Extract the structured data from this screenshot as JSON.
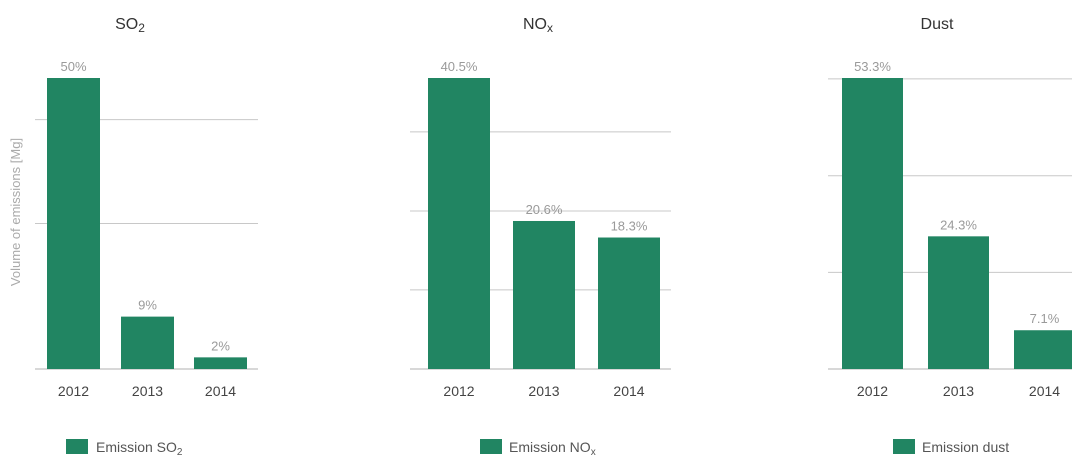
{
  "y_axis_label": "Volume of emissions [Mg]",
  "colors": {
    "bar": "#218562"
  },
  "chart_data": [
    {
      "type": "bar",
      "title": "SO2",
      "title_main": "SO",
      "title_sub": "2",
      "categories": [
        "2012",
        "2013",
        "2014"
      ],
      "series": [
        {
          "name": "Emission SO2",
          "values": [
            50,
            9,
            2
          ]
        }
      ],
      "data_labels": [
        "50%",
        "9%",
        "2%"
      ],
      "ylim": [
        0,
        50
      ],
      "grid": true,
      "legend": {
        "position": "bottom-center",
        "text": "Emission SO",
        "sub": "2"
      }
    },
    {
      "type": "bar",
      "title": "NOx",
      "title_main": "NO",
      "title_sub": "x",
      "categories": [
        "2012",
        "2013",
        "2014"
      ],
      "series": [
        {
          "name": "Emission NOx",
          "values": [
            40.5,
            20.6,
            18.3
          ]
        }
      ],
      "data_labels": [
        "40.5%",
        "20.6%",
        "18.3%"
      ],
      "ylim": [
        0,
        40.5
      ],
      "grid": true,
      "legend": {
        "position": "bottom-center",
        "text": "Emission NO",
        "sub": "x"
      }
    },
    {
      "type": "bar",
      "title": "Dust",
      "title_main": "Dust",
      "title_sub": "",
      "categories": [
        "2012",
        "2013",
        "2014"
      ],
      "series": [
        {
          "name": "Emission dust",
          "values": [
            53.3,
            24.3,
            7.1
          ]
        }
      ],
      "data_labels": [
        "53.3%",
        "24.3%",
        "7.1%"
      ],
      "ylim": [
        0,
        53.3
      ],
      "grid": true,
      "legend": {
        "position": "bottom-center",
        "text": "Emission dust",
        "sub": ""
      }
    }
  ]
}
